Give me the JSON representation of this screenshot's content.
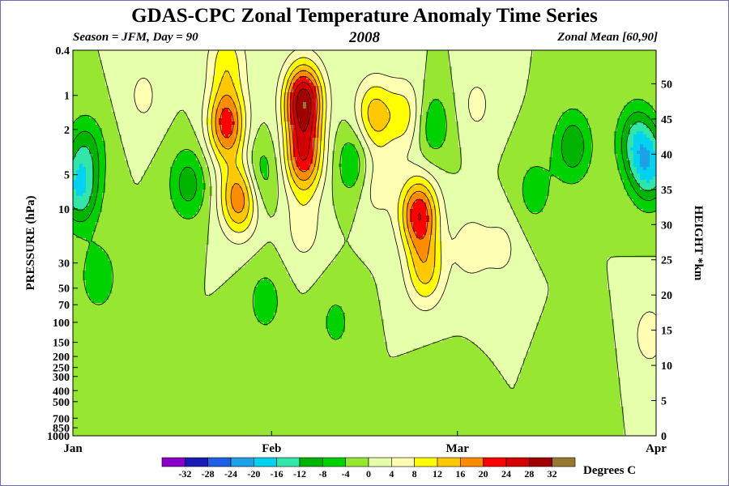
{
  "chart_data": {
    "type": "heatmap",
    "title": "GDAS-CPC Zonal Temperature Anomaly Time Series",
    "subtitle_left": "Season = JFM, Day =  90",
    "subtitle_center": "2008",
    "subtitle_right": "Zonal Mean [60,90]",
    "ylabel": "PRESSURE (hPa)",
    "ylabel_right": "HEIGHT *km",
    "x_ticks": [
      "Jan",
      "Feb",
      "Mar",
      "Apr"
    ],
    "x_tick_days": [
      0,
      31,
      60,
      91
    ],
    "xlim_days": [
      0,
      91
    ],
    "pressure_ticks": [
      "0.4",
      "1",
      "2",
      "5",
      "10",
      "30",
      "50",
      "70",
      "100",
      "150",
      "200",
      "250",
      "300",
      "400",
      "500",
      "700",
      "850",
      "1000"
    ],
    "pressure_values": [
      0.4,
      1,
      2,
      5,
      10,
      30,
      50,
      70,
      100,
      150,
      200,
      250,
      300,
      400,
      500,
      700,
      850,
      1000
    ],
    "ylim_pressure": [
      1000,
      0.4
    ],
    "y_scale": "log",
    "height_ticks": [
      "0",
      "5",
      "10",
      "15",
      "20",
      "25",
      "30",
      "35",
      "40",
      "45",
      "50"
    ],
    "height_values": [
      0,
      5,
      10,
      15,
      20,
      25,
      30,
      35,
      40,
      45,
      50
    ],
    "colorbar": {
      "label": "Degrees C",
      "levels": [
        "-32",
        "-28",
        "-24",
        "-20",
        "-16",
        "-12",
        "-8",
        "-4",
        "0",
        "4",
        "8",
        "12",
        "16",
        "20",
        "24",
        "28",
        "32"
      ],
      "colors": [
        "#8b00c8",
        "#1a1ab4",
        "#1e5fe6",
        "#1ea0e6",
        "#00d2f0",
        "#32e6aa",
        "#00b400",
        "#00d200",
        "#96e632",
        "#e6ffaa",
        "#ffffb4",
        "#ffff00",
        "#ffc800",
        "#ff8c00",
        "#ff0000",
        "#d20000",
        "#a00000",
        "#967832"
      ]
    },
    "anomalies": [
      {
        "day": 1,
        "pressure": 7,
        "value": -15
      },
      {
        "day": 2,
        "pressure": 3,
        "value": -9
      },
      {
        "day": 4,
        "pressure": 40,
        "value": -7
      },
      {
        "day": 9,
        "pressure": 350,
        "value": -3
      },
      {
        "day": 11,
        "pressure": 1.0,
        "value": 5
      },
      {
        "day": 18,
        "pressure": 6,
        "value": -10
      },
      {
        "day": 24,
        "pressure": 1.8,
        "value": 22
      },
      {
        "day": 26,
        "pressure": 8,
        "value": 20
      },
      {
        "day": 24,
        "pressure": 0.5,
        "value": 10
      },
      {
        "day": 29,
        "pressure": 5,
        "value": -8
      },
      {
        "day": 30,
        "pressure": 65,
        "value": -6
      },
      {
        "day": 36,
        "pressure": 1.1,
        "value": 30
      },
      {
        "day": 36,
        "pressure": 3.5,
        "value": 22
      },
      {
        "day": 36,
        "pressure": 15,
        "value": 6
      },
      {
        "day": 44,
        "pressure": 4,
        "value": -9
      },
      {
        "day": 47,
        "pressure": 1.5,
        "value": 14
      },
      {
        "day": 47,
        "pressure": 6,
        "value": 7
      },
      {
        "day": 52,
        "pressure": 1.5,
        "value": 10
      },
      {
        "day": 54,
        "pressure": 11,
        "value": 23
      },
      {
        "day": 55,
        "pressure": 35,
        "value": 13
      },
      {
        "day": 56,
        "pressure": 1.8,
        "value": -8
      },
      {
        "day": 63,
        "pressure": 1.2,
        "value": 5
      },
      {
        "day": 62,
        "pressure": 22,
        "value": 6
      },
      {
        "day": 67,
        "pressure": 22,
        "value": 5
      },
      {
        "day": 78,
        "pressure": 2.8,
        "value": -11
      },
      {
        "day": 88,
        "pressure": 2.5,
        "value": -13
      },
      {
        "day": 90,
        "pressure": 4.5,
        "value": -15
      },
      {
        "day": 72,
        "pressure": 7,
        "value": -6
      },
      {
        "day": 90,
        "pressure": 130,
        "value": 6
      },
      {
        "day": 41,
        "pressure": 100,
        "value": -5
      },
      {
        "day": 57,
        "pressure": 500,
        "value": -3
      },
      {
        "day": 80,
        "pressure": 220,
        "value": -3
      }
    ]
  }
}
